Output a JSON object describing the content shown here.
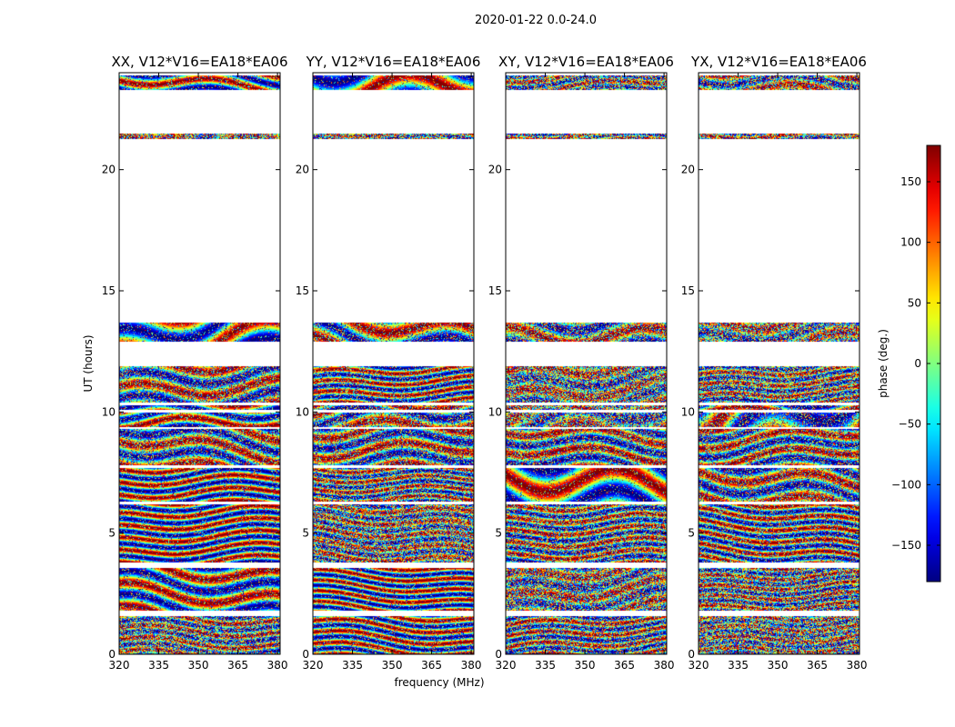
{
  "chart_data": {
    "type": "heatmap",
    "suptitle": "2020-01-22 0.0-24.0",
    "xlabel": "frequency (MHz)",
    "ylabel": "UT (hours)",
    "xlim": [
      320,
      381
    ],
    "ylim": [
      0,
      24
    ],
    "xticks": [
      320,
      335,
      350,
      365,
      380
    ],
    "yticks": [
      0,
      5,
      10,
      15,
      20
    ],
    "panels": [
      {
        "title": "XX, V12*V16=EA18*EA06"
      },
      {
        "title": "YY, V12*V16=EA18*EA06"
      },
      {
        "title": "XY, V12*V16=EA18*EA06"
      },
      {
        "title": "YX, V12*V16=EA18*EA06"
      }
    ],
    "data_blocks_ut": [
      [
        0.0,
        1.6
      ],
      [
        1.8,
        3.6
      ],
      [
        3.8,
        6.2
      ],
      [
        6.3,
        7.7
      ],
      [
        7.8,
        9.3
      ],
      [
        9.4,
        10.0
      ],
      [
        10.1,
        10.3
      ],
      [
        10.4,
        11.9
      ],
      [
        12.9,
        13.7
      ],
      [
        21.3,
        21.5
      ],
      [
        23.3,
        23.9
      ]
    ],
    "colorbar": {
      "label": "phase (deg.)",
      "range": [
        -180,
        180
      ],
      "ticks": [
        -150,
        -100,
        -50,
        0,
        50,
        100,
        150
      ],
      "tick_labels": [
        "−150",
        "−100",
        "−50",
        "0",
        "50",
        "100",
        "150"
      ],
      "colormap": "jet"
    }
  }
}
